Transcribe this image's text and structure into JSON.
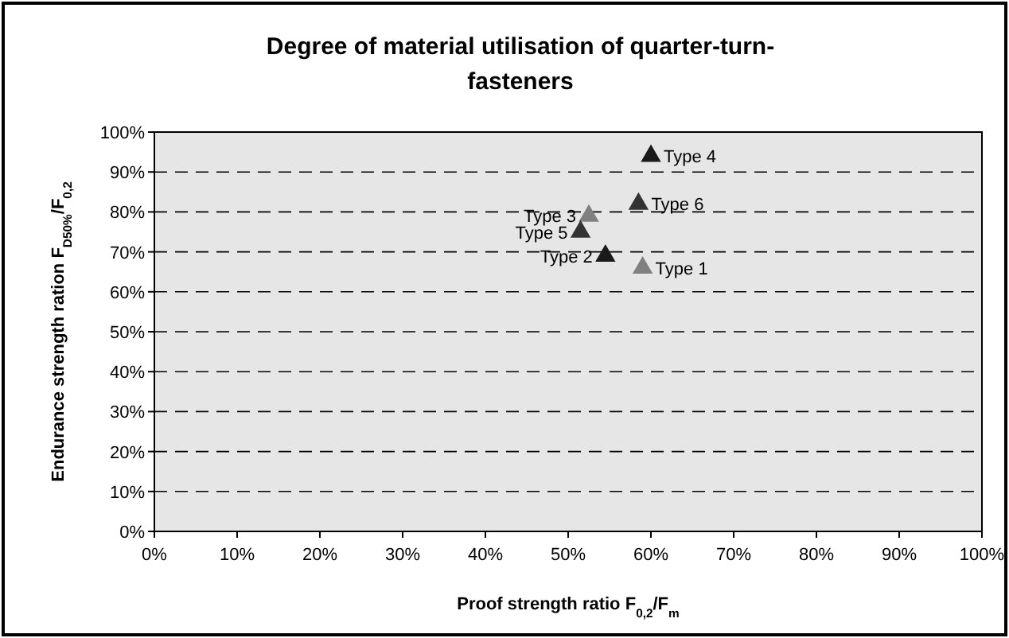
{
  "chart_data": {
    "type": "scatter",
    "title": "Degree of material utilisation of quarter-turn-fasteners",
    "xlabel": "Proof strength ratio F$_{0,2}$/F$_{m}$",
    "ylabel": "Endurance strength ration F$_{D50%}$/F$_{0,2}$",
    "xlim": [
      0,
      100
    ],
    "ylim": [
      0,
      100
    ],
    "xticks": [
      {
        "value": 0,
        "label": "0%"
      },
      {
        "value": 10,
        "label": "10%"
      },
      {
        "value": 20,
        "label": "20%"
      },
      {
        "value": 30,
        "label": "30%"
      },
      {
        "value": 40,
        "label": "40%"
      },
      {
        "value": 50,
        "label": "50%"
      },
      {
        "value": 60,
        "label": "60%"
      },
      {
        "value": 70,
        "label": "70%"
      },
      {
        "value": 80,
        "label": "80%"
      },
      {
        "value": 90,
        "label": "90%"
      },
      {
        "value": 100,
        "label": "100%"
      }
    ],
    "yticks": [
      {
        "value": 0,
        "label": "0%"
      },
      {
        "value": 10,
        "label": "10%"
      },
      {
        "value": 20,
        "label": "20%"
      },
      {
        "value": 30,
        "label": "30%"
      },
      {
        "value": 40,
        "label": "40%"
      },
      {
        "value": 50,
        "label": "50%"
      },
      {
        "value": 60,
        "label": "60%"
      },
      {
        "value": 70,
        "label": "70%"
      },
      {
        "value": 80,
        "label": "80%"
      },
      {
        "value": 90,
        "label": "90%"
      },
      {
        "value": 100,
        "label": "100%"
      }
    ],
    "grid": "y",
    "marker": "triangle",
    "series": [
      {
        "name": "Type 1",
        "color": "#808080",
        "x": [
          59
        ],
        "values": [
          66
        ]
      },
      {
        "name": "Type 2",
        "color": "#1a1a1a",
        "x": [
          54.5
        ],
        "values": [
          69
        ]
      },
      {
        "name": "Type 3",
        "color": "#808080",
        "x": [
          52.5
        ],
        "values": [
          79
        ]
      },
      {
        "name": "Type 4",
        "color": "#1a1a1a",
        "x": [
          60
        ],
        "values": [
          94
        ]
      },
      {
        "name": "Type 5",
        "color": "#333333",
        "x": [
          51.5
        ],
        "values": [
          75
        ]
      },
      {
        "name": "Type 6",
        "color": "#333333",
        "x": [
          58.5
        ],
        "values": [
          82
        ]
      }
    ]
  }
}
